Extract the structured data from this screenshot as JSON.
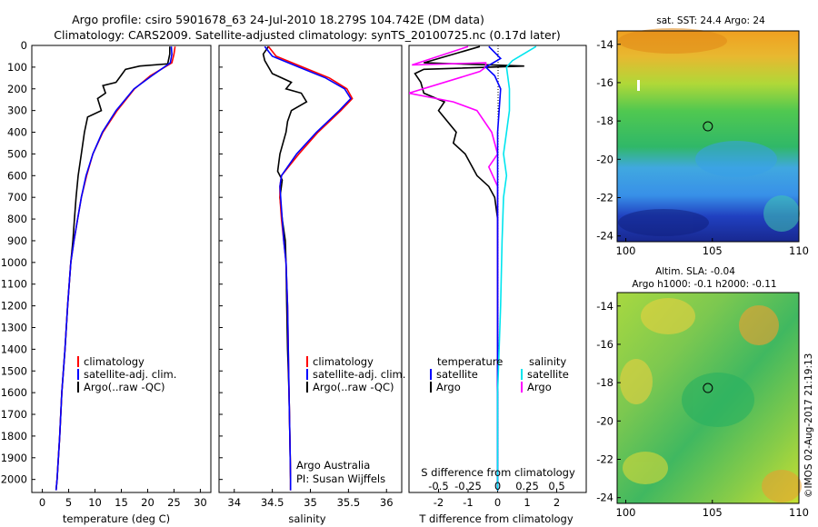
{
  "title": {
    "line1": "Argo profile: csiro 5901678_63 24-Jul-2010 18.279S 104.742E (DM data)",
    "line2": "Climatology: CARS2009. Satellite-adjusted climatology: synTS_20100725.nc (0.17d later)"
  },
  "colors": {
    "climatology": "#ff0000",
    "satellite_adj": "#0000ff",
    "argo": "#000000",
    "salinity_satellite": "#00e5ee",
    "salinity_argo": "#ff00ff"
  },
  "chart_data": [
    {
      "type": "line",
      "id": "temperature",
      "xlabel": "temperature (deg C)",
      "ylabel": "",
      "xlim": [
        -2,
        32
      ],
      "ylim": [
        2060,
        0
      ],
      "xticks": [
        0,
        5,
        10,
        15,
        20,
        25,
        30
      ],
      "yticks": [
        0,
        100,
        200,
        300,
        400,
        500,
        600,
        700,
        800,
        900,
        1000,
        1100,
        1200,
        1300,
        1400,
        1500,
        1600,
        1700,
        1800,
        1900,
        2000
      ],
      "legend": {
        "position": "lower-middle",
        "entries": [
          "climatology",
          "satellite-adj. clim.",
          "Argo(..raw -QC)"
        ]
      },
      "series": [
        {
          "name": "climatology",
          "points": [
            [
              25.2,
              5
            ],
            [
              25.0,
              40
            ],
            [
              24.6,
              80
            ],
            [
              20.5,
              140
            ],
            [
              17.5,
              200
            ],
            [
              14.2,
              300
            ],
            [
              11.5,
              400
            ],
            [
              9.6,
              500
            ],
            [
              8.4,
              600
            ],
            [
              7.4,
              700
            ],
            [
              6.7,
              800
            ],
            [
              6.0,
              900
            ],
            [
              5.4,
              1000
            ],
            [
              4.8,
              1200
            ],
            [
              4.3,
              1400
            ],
            [
              3.7,
              1600
            ],
            [
              3.3,
              1800
            ],
            [
              2.8,
              2000
            ],
            [
              2.6,
              2050
            ]
          ]
        },
        {
          "name": "satellite-adj. clim.",
          "points": [
            [
              24.5,
              5
            ],
            [
              24.6,
              40
            ],
            [
              24.3,
              80
            ],
            [
              20.8,
              140
            ],
            [
              17.4,
              200
            ],
            [
              14.0,
              300
            ],
            [
              11.4,
              400
            ],
            [
              9.6,
              500
            ],
            [
              8.3,
              600
            ],
            [
              7.4,
              700
            ],
            [
              6.7,
              800
            ],
            [
              6.0,
              900
            ],
            [
              5.4,
              1000
            ],
            [
              4.8,
              1200
            ],
            [
              4.3,
              1400
            ],
            [
              3.7,
              1600
            ],
            [
              3.3,
              1800
            ],
            [
              2.8,
              2000
            ],
            [
              2.6,
              2050
            ]
          ]
        },
        {
          "name": "Argo(..raw -QC)",
          "points": [
            [
              24.2,
              5
            ],
            [
              24.2,
              40
            ],
            [
              23.8,
              85
            ],
            [
              18.5,
              95
            ],
            [
              15.8,
              110
            ],
            [
              15.2,
              130
            ],
            [
              14.0,
              170
            ],
            [
              11.5,
              185
            ],
            [
              12.0,
              220
            ],
            [
              10.5,
              245
            ],
            [
              11.2,
              300
            ],
            [
              8.6,
              330
            ],
            [
              8.0,
              400
            ],
            [
              7.4,
              500
            ],
            [
              6.8,
              600
            ],
            [
              6.4,
              700
            ],
            [
              6.1,
              800
            ],
            [
              5.8,
              900
            ],
            [
              5.4,
              1000
            ],
            [
              4.8,
              1200
            ],
            [
              4.3,
              1400
            ],
            [
              3.7,
              1600
            ],
            [
              3.3,
              1800
            ],
            [
              2.8,
              2000
            ],
            [
              2.6,
              2050
            ]
          ]
        }
      ]
    },
    {
      "type": "line",
      "id": "salinity",
      "xlabel": "salinity",
      "xlim": [
        33.8,
        36.2
      ],
      "ylim": [
        2060,
        0
      ],
      "xticks": [
        34,
        34.5,
        35,
        35.5,
        36
      ],
      "legend": {
        "position": "lower-middle",
        "entries": [
          "climatology",
          "satellite-adj. clim.",
          "Argo(..raw -QC)"
        ]
      },
      "annotations": [
        "Argo Australia",
        "PI: Susan Wijffels"
      ],
      "series": [
        {
          "name": "climatology",
          "points": [
            [
              34.45,
              5
            ],
            [
              34.55,
              50
            ],
            [
              34.9,
              100
            ],
            [
              35.25,
              150
            ],
            [
              35.48,
              200
            ],
            [
              35.55,
              245
            ],
            [
              35.4,
              300
            ],
            [
              35.1,
              400
            ],
            [
              34.85,
              500
            ],
            [
              34.62,
              600
            ],
            [
              34.6,
              650
            ],
            [
              34.6,
              700
            ],
            [
              34.62,
              800
            ],
            [
              34.65,
              900
            ],
            [
              34.68,
              1000
            ],
            [
              34.7,
              1200
            ],
            [
              34.71,
              1400
            ],
            [
              34.72,
              1600
            ],
            [
              34.73,
              1800
            ],
            [
              34.74,
              2000
            ],
            [
              34.74,
              2050
            ]
          ]
        },
        {
          "name": "satellite-adj. clim.",
          "points": [
            [
              34.4,
              5
            ],
            [
              34.5,
              50
            ],
            [
              34.85,
              100
            ],
            [
              35.2,
              150
            ],
            [
              35.45,
              200
            ],
            [
              35.53,
              245
            ],
            [
              35.38,
              300
            ],
            [
              35.08,
              400
            ],
            [
              34.82,
              500
            ],
            [
              34.62,
              600
            ],
            [
              34.6,
              650
            ],
            [
              34.61,
              700
            ],
            [
              34.63,
              800
            ],
            [
              34.65,
              900
            ],
            [
              34.68,
              1000
            ],
            [
              34.7,
              1200
            ],
            [
              34.71,
              1400
            ],
            [
              34.72,
              1600
            ],
            [
              34.73,
              1800
            ],
            [
              34.74,
              2000
            ],
            [
              34.74,
              2050
            ]
          ]
        },
        {
          "name": "Argo(..raw -QC)",
          "points": [
            [
              34.45,
              5
            ],
            [
              34.38,
              40
            ],
            [
              34.4,
              70
            ],
            [
              34.5,
              130
            ],
            [
              34.75,
              170
            ],
            [
              34.68,
              200
            ],
            [
              34.88,
              220
            ],
            [
              34.95,
              260
            ],
            [
              34.75,
              300
            ],
            [
              34.7,
              350
            ],
            [
              34.68,
              400
            ],
            [
              34.6,
              500
            ],
            [
              34.57,
              580
            ],
            [
              34.63,
              620
            ],
            [
              34.6,
              700
            ],
            [
              34.63,
              800
            ],
            [
              34.67,
              900
            ],
            [
              34.68,
              1000
            ],
            [
              34.69,
              1200
            ],
            [
              34.7,
              1400
            ],
            [
              34.72,
              1600
            ],
            [
              34.73,
              1800
            ],
            [
              34.74,
              2000
            ],
            [
              34.74,
              2050
            ]
          ]
        }
      ]
    },
    {
      "type": "line",
      "id": "difference",
      "xlabel": "T difference from climatology",
      "xlabel_top": "S difference from climatology",
      "xlim": [
        -3,
        3
      ],
      "ylim": [
        2060,
        0
      ],
      "xticks_T": [
        "-2",
        "-1",
        "0",
        "1",
        "2"
      ],
      "xticks_S": [
        "-0.5",
        "-0.25",
        "0",
        "0.25",
        "0.5"
      ],
      "legend": {
        "position": "lower-middle",
        "temperature_header": "temperature",
        "salinity_header": "salinity",
        "temperature_entries": [
          "satellite",
          "Argo"
        ],
        "salinity_entries": [
          "satellite",
          "Argo"
        ]
      },
      "series": [
        {
          "name": "temperature satellite",
          "points": [
            [
              -0.3,
              5
            ],
            [
              0.1,
              60
            ],
            [
              -0.4,
              100
            ],
            [
              -0.1,
              140
            ],
            [
              0.1,
              200
            ],
            [
              0.0,
              400
            ],
            [
              0.0,
              600
            ],
            [
              0.0,
              800
            ],
            [
              0.0,
              1200
            ],
            [
              0.0,
              1600
            ],
            [
              0.0,
              2050
            ]
          ]
        },
        {
          "name": "temperature Argo",
          "points": [
            [
              -0.6,
              5
            ],
            [
              -2.5,
              80
            ],
            [
              0.9,
              95
            ],
            [
              -2.5,
              110
            ],
            [
              -2.8,
              130
            ],
            [
              -2.6,
              170
            ],
            [
              -2.5,
              220
            ],
            [
              -1.8,
              260
            ],
            [
              -2.0,
              300
            ],
            [
              -1.4,
              400
            ],
            [
              -1.5,
              450
            ],
            [
              -1.1,
              500
            ],
            [
              -0.7,
              600
            ],
            [
              -0.3,
              650
            ],
            [
              -0.1,
              700
            ],
            [
              0.0,
              800
            ],
            [
              0.0,
              1000
            ],
            [
              0.0,
              1400
            ],
            [
              0.0,
              2050
            ]
          ]
        },
        {
          "name": "salinity satellite",
          "points": [
            [
              1.3,
              5
            ],
            [
              0.5,
              70
            ],
            [
              0.3,
              100
            ],
            [
              0.4,
              200
            ],
            [
              0.4,
              300
            ],
            [
              0.3,
              400
            ],
            [
              0.2,
              500
            ],
            [
              0.3,
              600
            ],
            [
              0.2,
              700
            ],
            [
              0.15,
              900
            ],
            [
              0.1,
              1200
            ],
            [
              0.0,
              1600
            ],
            [
              0.0,
              2050
            ]
          ]
        },
        {
          "name": "salinity Argo",
          "points": [
            [
              -1.0,
              5
            ],
            [
              -2.9,
              90
            ],
            [
              -0.4,
              80
            ],
            [
              -0.4,
              100
            ],
            [
              -0.6,
              120
            ],
            [
              -3.0,
              220
            ],
            [
              -1.5,
              260
            ],
            [
              -0.7,
              300
            ],
            [
              -0.2,
              400
            ],
            [
              0.0,
              500
            ],
            [
              -0.3,
              560
            ],
            [
              0.0,
              650
            ],
            [
              0.0,
              900
            ],
            [
              0.0,
              2050
            ]
          ]
        }
      ]
    },
    {
      "type": "heatmap",
      "id": "sst-map",
      "title": "sat. SST: 24.4  Argo: 24",
      "xlim": [
        99.5,
        110
      ],
      "ylim": [
        -24.3,
        -13.3
      ],
      "xticks": [
        "100",
        "105",
        "110"
      ],
      "yticks": [
        "-14",
        "-16",
        "-18",
        "-20",
        "-22",
        "-24"
      ],
      "marker": {
        "lon": 104.742,
        "lat": -18.279
      }
    },
    {
      "type": "heatmap",
      "id": "sla-map",
      "title1": "Altim. SLA: -0.04",
      "title2": "Argo h1000: -0.1  h2000: -0.11",
      "xlim": [
        99.5,
        110
      ],
      "ylim": [
        -24.3,
        -13.3
      ],
      "xticks": [
        "100",
        "105",
        "110"
      ],
      "yticks": [
        "-14",
        "-16",
        "-18",
        "-20",
        "-22",
        "-24"
      ],
      "marker": {
        "lon": 104.742,
        "lat": -18.279
      }
    }
  ],
  "side_label": "©IMOS 02-Aug-2017 21:19:13"
}
